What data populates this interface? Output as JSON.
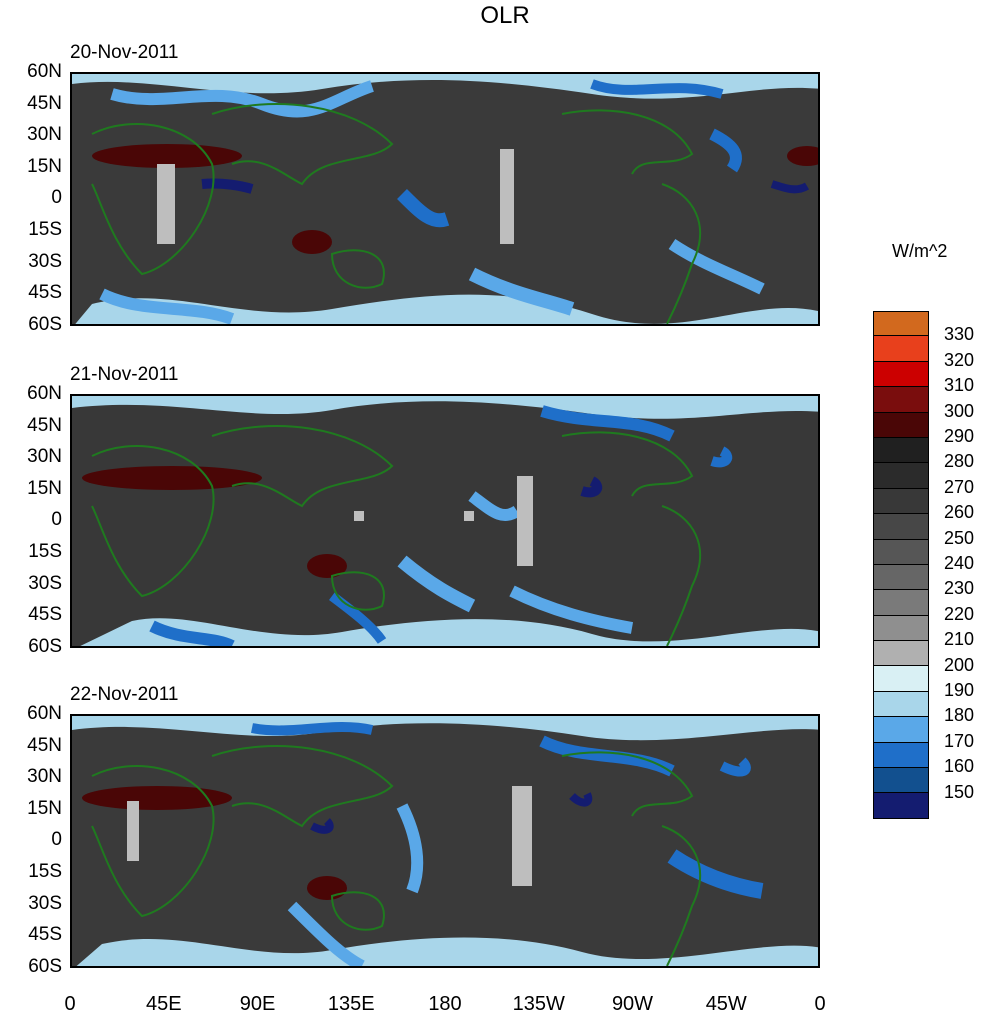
{
  "title": "OLR",
  "units": "W/m^2",
  "panels": [
    {
      "date": "20-Nov-2011"
    },
    {
      "date": "21-Nov-2011"
    },
    {
      "date": "22-Nov-2011"
    }
  ],
  "lat_labels": [
    "60N",
    "45N",
    "30N",
    "15N",
    "0",
    "15S",
    "30S",
    "45S",
    "60S"
  ],
  "lon_labels": [
    "0",
    "45E",
    "90E",
    "135E",
    "180",
    "135W",
    "90W",
    "45W",
    "0"
  ],
  "colorbar": {
    "levels": [
      "330",
      "320",
      "310",
      "300",
      "290",
      "280",
      "270",
      "260",
      "250",
      "240",
      "230",
      "220",
      "210",
      "200",
      "190",
      "180",
      "170",
      "160",
      "150"
    ],
    "colors": [
      "#d2691e",
      "#e8401c",
      "#cc0000",
      "#7a0d0d",
      "#4a0606",
      "#202020",
      "#2b2b2b",
      "#383838",
      "#474747",
      "#565656",
      "#666666",
      "#7a7a7a",
      "#8f8f8f",
      "#b0b0b0",
      "#d9f0f4",
      "#a9d6ea",
      "#5aa8e8",
      "#1f6fc9",
      "#12508f",
      "#141c70"
    ]
  },
  "map_colors": {
    "coast": "#1f7a1f",
    "missing": "#bebebe"
  }
}
